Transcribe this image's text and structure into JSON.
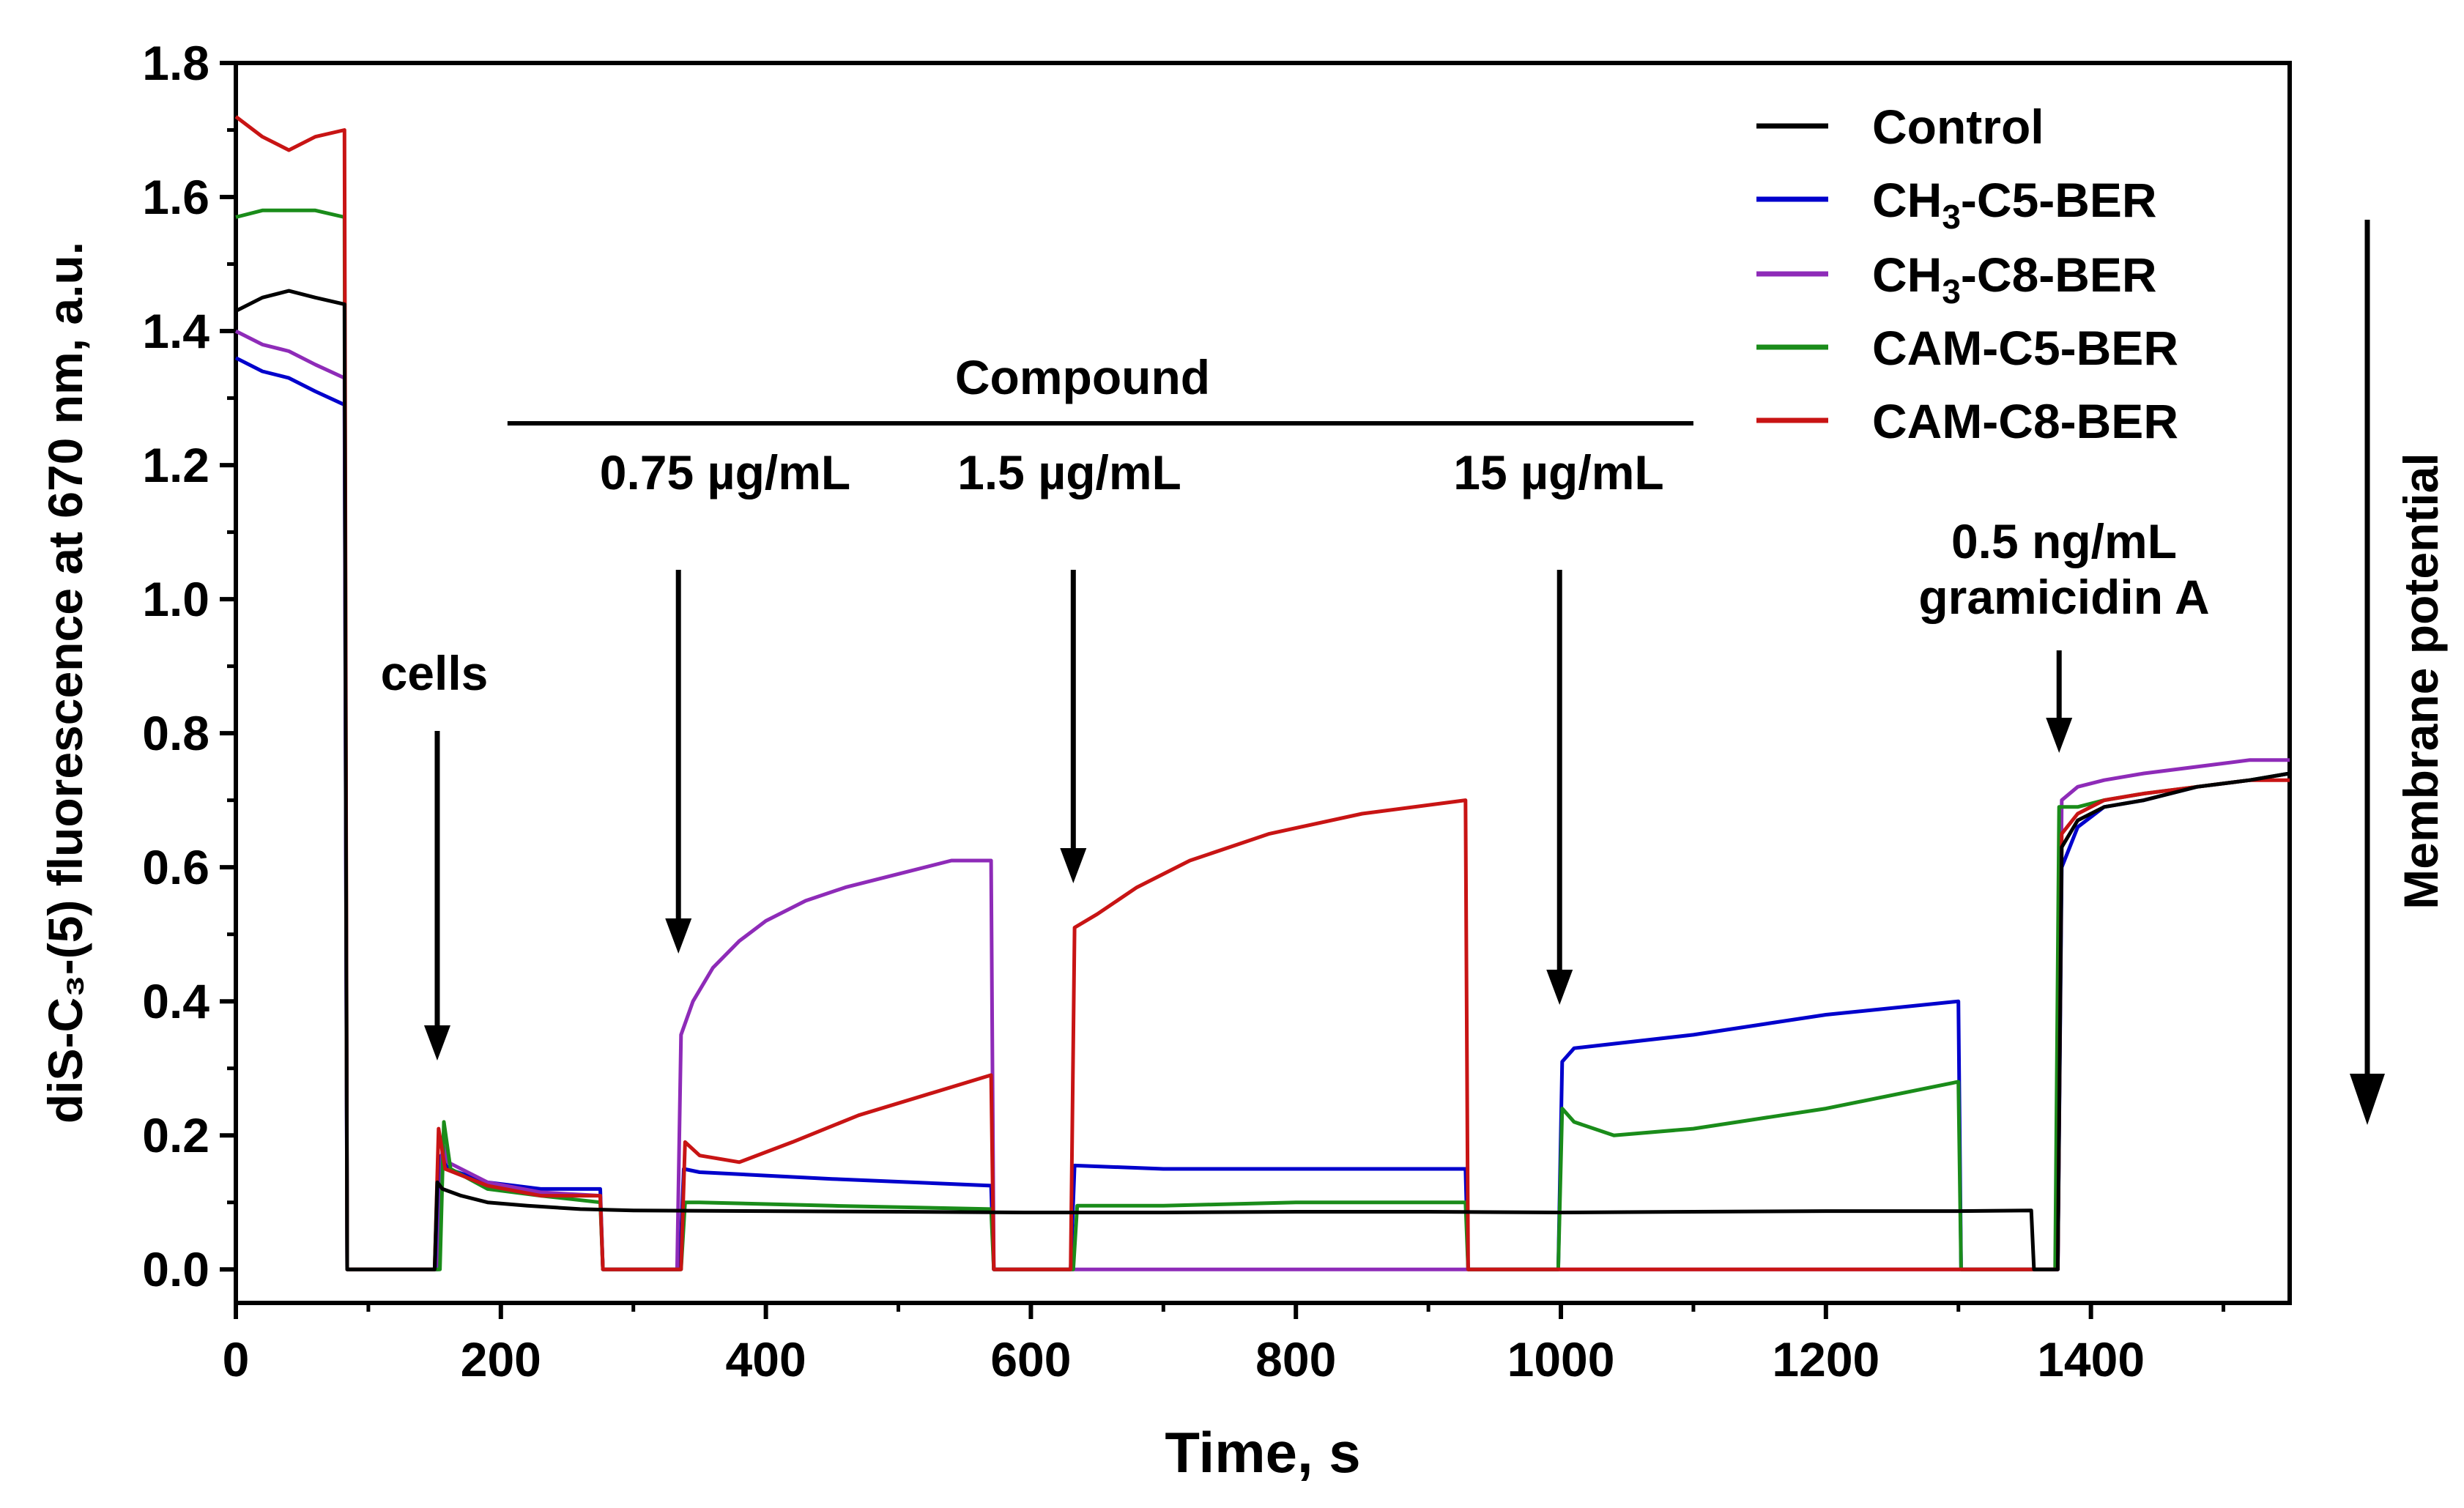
{
  "chart_data": {
    "type": "line",
    "title": "",
    "xlabel": "Time, s",
    "ylabel": "diS-C₃-(5) fluorescence at 670 nm, a.u.",
    "xlim": [
      0,
      1550
    ],
    "ylim": [
      -0.05,
      1.8
    ],
    "xticks": [
      0,
      200,
      400,
      600,
      800,
      1000,
      1200,
      1400
    ],
    "yticks": [
      0.0,
      0.2,
      0.4,
      0.6,
      0.8,
      1.0,
      1.2,
      1.4,
      1.6,
      1.8
    ],
    "xtick_labels": [
      "0",
      "200",
      "400",
      "600",
      "800",
      "1000",
      "1200",
      "1400"
    ],
    "ytick_labels": [
      "0.0",
      "0.2",
      "0.4",
      "0.6",
      "0.8",
      "1.0",
      "1.2",
      "1.4",
      "1.6",
      "1.8"
    ],
    "grid": false,
    "legend_position": "top-right",
    "series": [
      {
        "name": "Control",
        "color": "#000000",
        "x": [
          0,
          20,
          40,
          60,
          82,
          84,
          150,
          152,
          156,
          170,
          190,
          220,
          260,
          300,
          400,
          500,
          600,
          700,
          800,
          900,
          1000,
          1100,
          1200,
          1300,
          1355,
          1357,
          1375,
          1378,
          1390,
          1410,
          1440,
          1480,
          1520,
          1550
        ],
        "y": [
          1.43,
          1.45,
          1.46,
          1.45,
          1.44,
          0.0,
          0.0,
          0.13,
          0.12,
          0.11,
          0.1,
          0.095,
          0.09,
          0.088,
          0.087,
          0.086,
          0.085,
          0.085,
          0.086,
          0.086,
          0.085,
          0.086,
          0.087,
          0.087,
          0.088,
          0.0,
          0.0,
          0.63,
          0.67,
          0.69,
          0.7,
          0.72,
          0.73,
          0.74
        ]
      },
      {
        "name": "CH₃-C5-BER",
        "color": "#0000cc",
        "x": [
          0,
          20,
          40,
          60,
          82,
          84,
          152,
          155,
          160,
          190,
          230,
          275,
          277,
          335,
          338,
          350,
          450,
          570,
          572,
          630,
          633,
          700,
          800,
          928,
          930,
          998,
          1001,
          1010,
          1100,
          1200,
          1300,
          1302,
          1375,
          1378,
          1390,
          1410,
          1440,
          1480,
          1520,
          1550
        ],
        "y": [
          1.36,
          1.34,
          1.33,
          1.31,
          1.29,
          0.0,
          0.0,
          0.17,
          0.15,
          0.13,
          0.12,
          0.12,
          0.0,
          0.0,
          0.15,
          0.145,
          0.135,
          0.125,
          0.0,
          0.0,
          0.155,
          0.15,
          0.15,
          0.15,
          0.0,
          0.0,
          0.31,
          0.33,
          0.35,
          0.38,
          0.4,
          0.0,
          0.0,
          0.6,
          0.66,
          0.69,
          0.7,
          0.72,
          0.73,
          0.74
        ]
      },
      {
        "name": "CH₃-C8-BER",
        "color": "#8e2bb8",
        "x": [
          0,
          20,
          40,
          60,
          82,
          84,
          153,
          156,
          160,
          190,
          230,
          275,
          277,
          333,
          336,
          345,
          360,
          380,
          400,
          430,
          460,
          500,
          540,
          570,
          572,
          1375,
          1378,
          1390,
          1410,
          1440,
          1480,
          1520,
          1550
        ],
        "y": [
          1.4,
          1.38,
          1.37,
          1.35,
          1.33,
          0.0,
          0.0,
          0.19,
          0.16,
          0.13,
          0.115,
          0.11,
          0.0,
          0.0,
          0.35,
          0.4,
          0.45,
          0.49,
          0.52,
          0.55,
          0.57,
          0.59,
          0.61,
          0.61,
          0.0,
          0.0,
          0.7,
          0.72,
          0.73,
          0.74,
          0.75,
          0.76,
          0.76
        ]
      },
      {
        "name": "CAM-C5-BER",
        "color": "#1a8c1a",
        "x": [
          0,
          20,
          40,
          60,
          82,
          84,
          154,
          157,
          162,
          190,
          230,
          275,
          277,
          336,
          339,
          350,
          450,
          570,
          572,
          632,
          635,
          700,
          800,
          928,
          930,
          998,
          1001,
          1010,
          1040,
          1100,
          1200,
          1300,
          1302,
          1373,
          1376,
          1390,
          1410,
          1440,
          1480,
          1520,
          1550
        ],
        "y": [
          1.57,
          1.58,
          1.58,
          1.58,
          1.57,
          0.0,
          0.0,
          0.22,
          0.15,
          0.12,
          0.11,
          0.1,
          0.0,
          0.0,
          0.1,
          0.1,
          0.095,
          0.09,
          0.0,
          0.0,
          0.095,
          0.095,
          0.1,
          0.1,
          0.0,
          0.0,
          0.24,
          0.22,
          0.2,
          0.21,
          0.24,
          0.28,
          0.0,
          0.0,
          0.69,
          0.69,
          0.7,
          0.71,
          0.72,
          0.73,
          0.74
        ]
      },
      {
        "name": "CAM-C8-BER",
        "color": "#c81414",
        "x": [
          0,
          20,
          40,
          60,
          82,
          84,
          150,
          153,
          158,
          190,
          230,
          275,
          277,
          336,
          339,
          350,
          380,
          420,
          470,
          520,
          570,
          572,
          630,
          633,
          650,
          680,
          720,
          780,
          850,
          928,
          930,
          1375,
          1378,
          1390,
          1410,
          1440,
          1480,
          1520,
          1550
        ],
        "y": [
          1.72,
          1.69,
          1.67,
          1.69,
          1.7,
          0.0,
          0.0,
          0.21,
          0.15,
          0.125,
          0.11,
          0.11,
          0.0,
          0.0,
          0.19,
          0.17,
          0.16,
          0.19,
          0.23,
          0.26,
          0.29,
          0.0,
          0.0,
          0.51,
          0.53,
          0.57,
          0.61,
          0.65,
          0.68,
          0.7,
          0.0,
          0.0,
          0.65,
          0.68,
          0.7,
          0.71,
          0.72,
          0.73,
          0.73
        ]
      }
    ],
    "annotations": {
      "compound_label": "Compound",
      "compound_range_x": [
        205,
        1100
      ],
      "dose_labels": [
        "0.75 µg/mL",
        "1.5 µg/mL",
        "15 µg/mL"
      ],
      "cells_label": "cells",
      "gramicidin_label_line1": "0.5 ng/mL",
      "gramicidin_label_line2": "gramicidin A",
      "membrane_potential_label": "Membrane potential"
    }
  },
  "legend": {
    "entries": [
      {
        "prefix": "Control",
        "sub": "",
        "suffix": ""
      },
      {
        "prefix": "CH",
        "sub": "3",
        "suffix": "-C5-BER"
      },
      {
        "prefix": "CH",
        "sub": "3",
        "suffix": "-C8-BER"
      },
      {
        "prefix": "CAM-C5-BER",
        "sub": "",
        "suffix": ""
      },
      {
        "prefix": "CAM-C8-BER",
        "sub": "",
        "suffix": ""
      }
    ]
  }
}
